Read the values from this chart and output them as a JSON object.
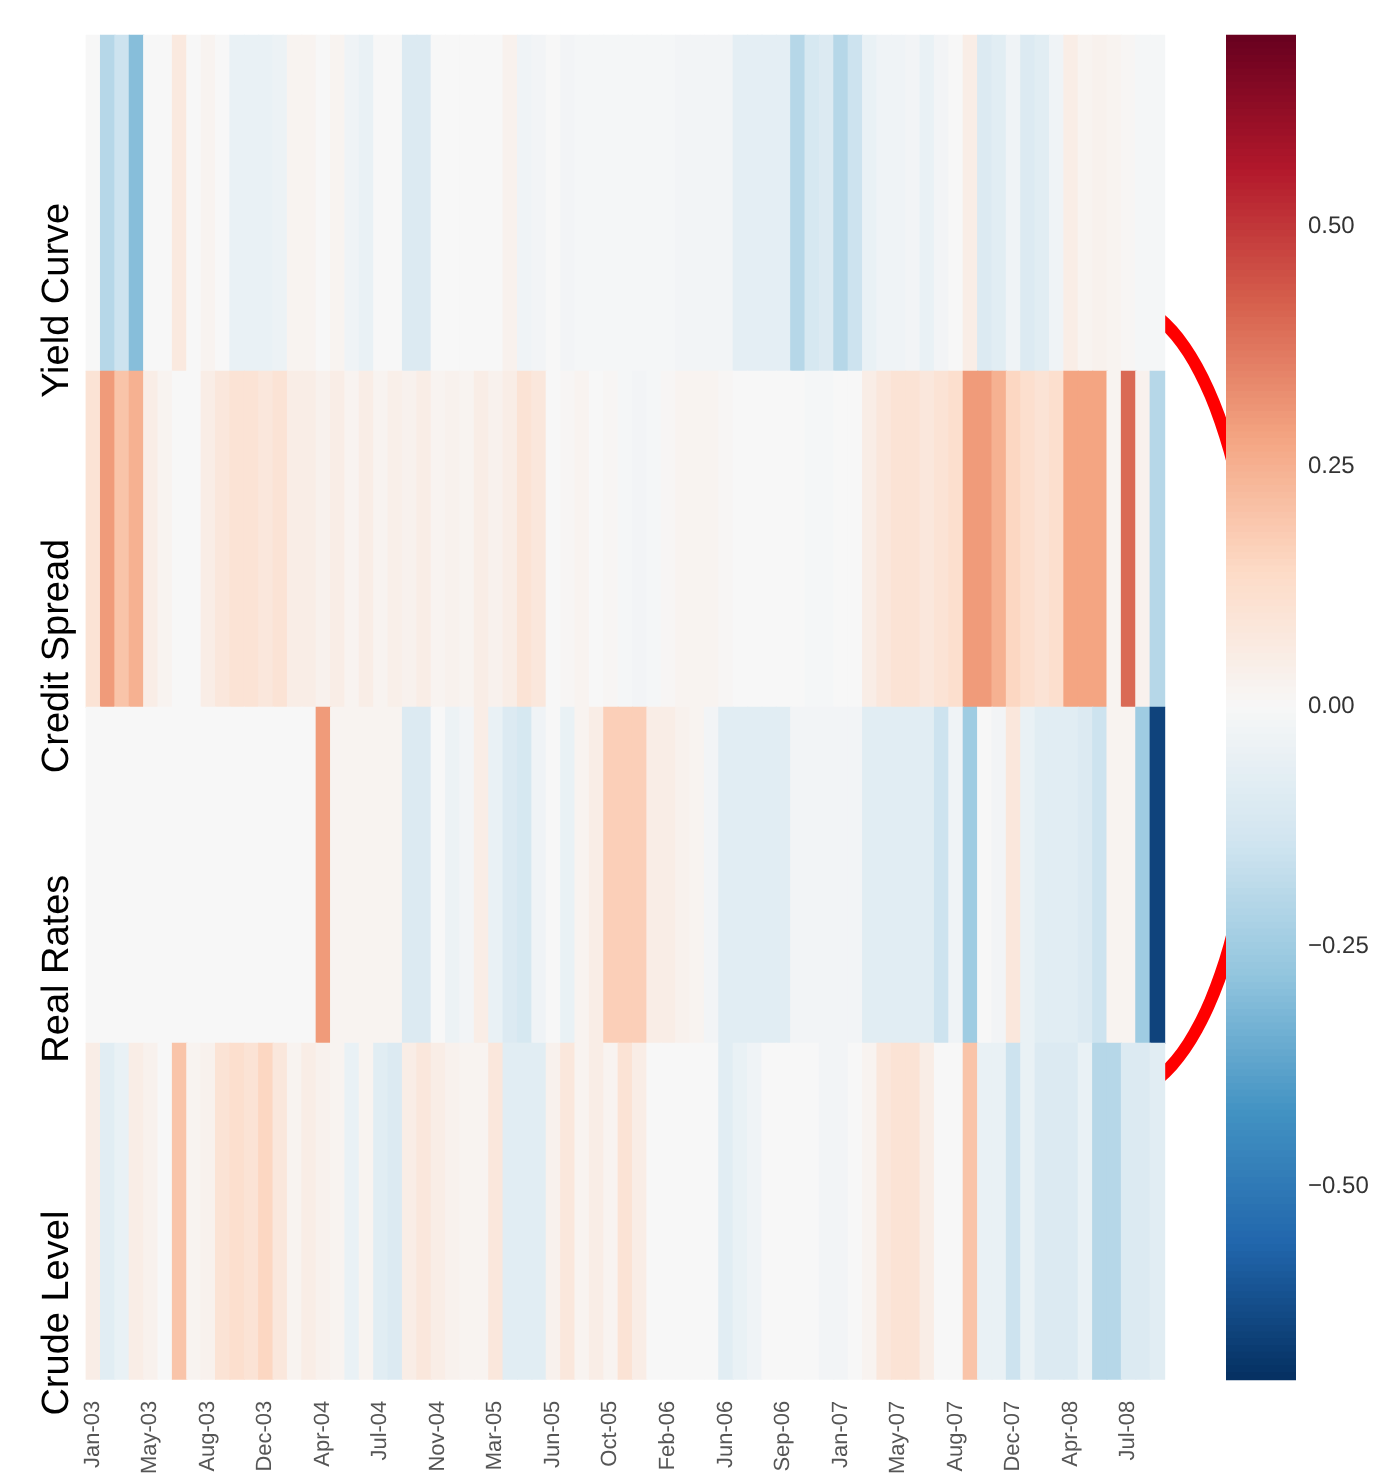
{
  "chart_data": {
    "type": "heatmap",
    "categories": [
      "Jan-03",
      null,
      null,
      null,
      "May-03",
      null,
      null,
      null,
      "Aug-03",
      null,
      null,
      null,
      "Dec-03",
      null,
      null,
      null,
      "Apr-04",
      null,
      null,
      null,
      "Jul-04",
      null,
      null,
      null,
      "Nov-04",
      null,
      null,
      null,
      "Mar-05",
      null,
      null,
      null,
      "Jun-05",
      null,
      null,
      null,
      "Oct-05",
      null,
      null,
      null,
      "Feb-06",
      null,
      null,
      null,
      "Jun-06",
      null,
      null,
      null,
      "Sep-06",
      null,
      null,
      null,
      "Jan-07",
      null,
      null,
      null,
      "May-07",
      null,
      null,
      null,
      "Aug-07",
      null,
      null,
      null,
      "Dec-07",
      null,
      null,
      null,
      "Apr-08",
      null,
      null,
      null,
      "Jul-08",
      null,
      null
    ],
    "y_categories": [
      "Yield Curve",
      "Credit Spread",
      "Real Rates",
      "Crude Level"
    ],
    "cells": [
      [
        0,
        -0.2,
        -0.15,
        -0.3,
        0,
        0,
        0.07,
        0,
        0.02,
        0,
        -0.05,
        -0.05,
        -0.05,
        -0.04,
        0.02,
        0.02,
        0,
        0.02,
        -0.03,
        -0.05,
        0,
        0,
        -0.1,
        -0.1,
        0,
        0,
        0,
        0,
        0,
        0.03,
        -0.03,
        -0.02,
        0,
        -0.02,
        -0.01,
        -0.01,
        -0.01,
        -0.01,
        -0.01,
        -0.01,
        -0.01,
        -0.02,
        -0.02,
        -0.02,
        -0.02,
        -0.07,
        -0.07,
        -0.07,
        -0.07,
        -0.2,
        -0.12,
        -0.1,
        -0.2,
        -0.15,
        -0.05,
        -0.03,
        -0.03,
        -0.02,
        -0.05,
        -0.02,
        0,
        0.05,
        -0.1,
        -0.08,
        -0.03,
        -0.1,
        -0.08,
        -0.03,
        0.05,
        0.02,
        0.03,
        0.02,
        0.01,
        -0.01,
        -0.01
      ],
      [
        0.1,
        0.3,
        0.2,
        0.25,
        0.05,
        0.02,
        0,
        0,
        0.05,
        0.08,
        0.1,
        0.1,
        0.08,
        0.1,
        0.05,
        0.05,
        0.03,
        0.05,
        0.02,
        0.05,
        0.02,
        0.04,
        0.03,
        0.05,
        0.02,
        0.03,
        0.02,
        0.05,
        0.03,
        0.05,
        0.1,
        0.08,
        0,
        0.01,
        0.02,
        0,
        0.01,
        -0.01,
        -0.02,
        -0.01,
        0.01,
        0.02,
        0.02,
        0.02,
        0.01,
        0,
        0,
        0,
        0,
        0,
        -0.01,
        -0.01,
        0,
        0,
        0.05,
        0.08,
        0.1,
        0.1,
        0.08,
        0.1,
        0.12,
        0.3,
        0.3,
        0.25,
        0.15,
        0.12,
        0.1,
        0.12,
        0.28,
        0.28,
        0.28,
        0.02,
        0.4,
        0.03,
        -0.2
      ],
      [
        0,
        0,
        0,
        0,
        0,
        0,
        0,
        0,
        0,
        0,
        0,
        0,
        0,
        0,
        0,
        0,
        0.3,
        0.02,
        0.02,
        0.02,
        0.02,
        0.02,
        -0.1,
        -0.1,
        0,
        -0.04,
        -0.02,
        0.05,
        -0.05,
        -0.1,
        -0.12,
        -0.03,
        0,
        -0.05,
        0.02,
        0.05,
        0.17,
        0.17,
        0.17,
        0.05,
        0.05,
        0.03,
        0.02,
        -0.02,
        -0.08,
        -0.08,
        -0.08,
        -0.08,
        -0.08,
        -0.02,
        -0.02,
        -0.02,
        -0.02,
        -0.02,
        -0.08,
        -0.08,
        -0.08,
        -0.08,
        -0.08,
        -0.15,
        -0.03,
        -0.25,
        0,
        -0.02,
        0.08,
        -0.05,
        -0.08,
        -0.08,
        -0.08,
        -0.1,
        -0.15,
        0.02,
        0.02,
        -0.25,
        -0.65
      ],
      [
        0.05,
        -0.08,
        -0.05,
        0.05,
        0.03,
        0,
        0.2,
        0.02,
        0.03,
        0.1,
        0.12,
        0.1,
        0.15,
        0.08,
        0.02,
        0.05,
        0.03,
        0.02,
        -0.05,
        0.02,
        -0.08,
        -0.1,
        0.05,
        0.08,
        0.05,
        0.03,
        0.02,
        0.02,
        0.08,
        -0.08,
        -0.08,
        -0.08,
        0.03,
        0.08,
        0.02,
        0.05,
        0.02,
        0.1,
        0.05,
        0,
        0,
        0,
        0,
        0,
        -0.08,
        -0.05,
        -0.03,
        0,
        0,
        0,
        0,
        -0.02,
        -0.02,
        0,
        0.02,
        0.08,
        0.1,
        0.1,
        0.05,
        0,
        0,
        0.2,
        -0.05,
        -0.05,
        -0.15,
        -0.05,
        -0.1,
        -0.1,
        -0.1,
        -0.05,
        -0.2,
        -0.2,
        -0.1,
        -0.1,
        -0.08
      ]
    ],
    "clim": [
      -0.7,
      0.7
    ],
    "cticks": [
      {
        "value": -0.5,
        "label": "−0.50"
      },
      {
        "value": -0.25,
        "label": "−0.25"
      },
      {
        "value": 0,
        "label": "0.00"
      },
      {
        "value": 0.25,
        "label": "0.25"
      },
      {
        "value": 0.5,
        "label": "0.50"
      }
    ]
  }
}
